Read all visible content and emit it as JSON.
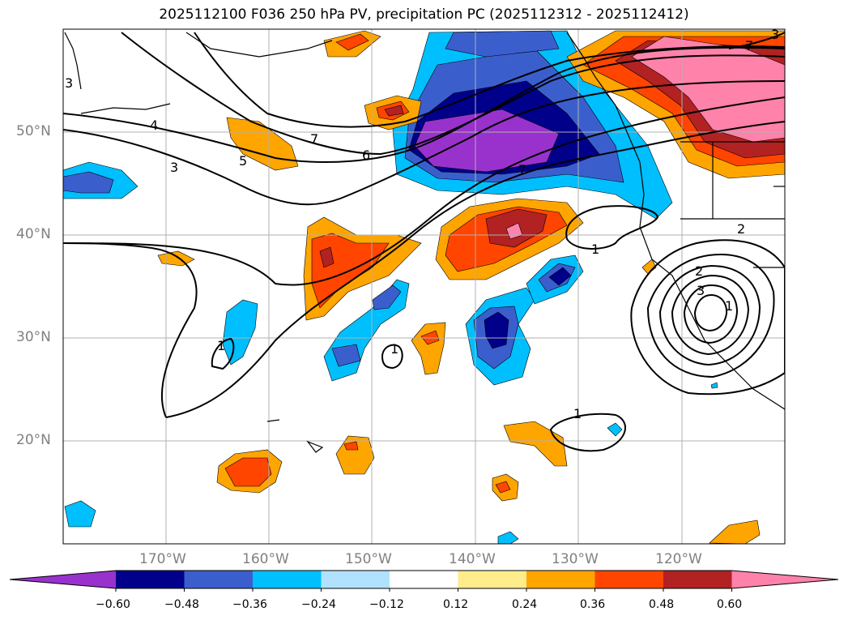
{
  "title": "2025112100 F036 250 hPa PV, precipitation PC (2025112312 - 2025112412)",
  "lat_labels": [
    "50°N",
    "40°N",
    "30°N",
    "20°N"
  ],
  "lon_labels": [
    "170°W",
    "160°W",
    "150°W",
    "140°W",
    "130°W",
    "120°W"
  ],
  "colorbar": {
    "ticks": [
      "−0.60",
      "−0.48",
      "−0.36",
      "−0.24",
      "−0.12",
      "0.12",
      "0.24",
      "0.36",
      "0.48",
      "0.60"
    ],
    "colors": [
      "#9932cc",
      "#00008b",
      "#3a5fcd",
      "#00bfff",
      "#b0e2ff",
      "#ffffff",
      "#ffec8b",
      "#ffa500",
      "#ff4500",
      "#b22222",
      "#ff82ab"
    ]
  },
  "contour_labels": [
    "3",
    "4",
    "5",
    "6",
    "7",
    "7",
    "7",
    "1",
    "1",
    "1",
    "1",
    "1",
    "2",
    "2",
    "3",
    "3",
    "3"
  ]
}
